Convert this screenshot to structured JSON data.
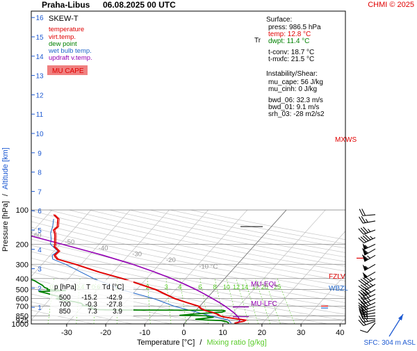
{
  "header": {
    "station": "Praha-Libus",
    "datetime": "06.08.2025 00 UTC",
    "copyright": "CHMI © 2025"
  },
  "colors": {
    "temperature": "#e00000",
    "virtual_temperature": "#e00000",
    "dew_point": "#008000",
    "wet_bulb": "#1e64c8",
    "updraft": "#9400b4",
    "mixing_ratio": "#5ccc2c",
    "grid": "#888888",
    "mu_cape_bg": "#f08080"
  },
  "legend": {
    "title": "SKEW-T",
    "items": [
      {
        "label": "temperature",
        "color": "#e00000"
      },
      {
        "label": "virt.temp.",
        "color": "#e00000"
      },
      {
        "label": "dew point",
        "color": "#008000"
      },
      {
        "label": "wet bulb temp.",
        "color": "#1e64c8"
      },
      {
        "label": "updraft v.temp.",
        "color": "#9400b4"
      }
    ],
    "mu_cape_label": "MU CAPE"
  },
  "surface": {
    "title": "Surface:",
    "press": "press: 986.5 hPa",
    "temp": "temp: 12.8 °C",
    "dwpt": "dwpt: 11.4 °C",
    "tconv": "t-conv: 18.7 °C",
    "tmxfc": "t-mxfc: 21.5 °C"
  },
  "instability": {
    "title": "Instability/Shear:",
    "mu_cape": "mu_cape: 56 J/kg",
    "mu_cinh": "mu_cinh: 0 J/kg",
    "bwd_06": "bwd_06: 32.3 m/s",
    "bwd_01": "bwd_01: 9.1 m/s",
    "srh_03": "srh_03: -28 m2/s2"
  },
  "levels_table": {
    "headers": [
      "p [hPa]",
      "T",
      "Td [°C]"
    ],
    "rows": [
      [
        "500",
        "-15.2",
        "-42.9"
      ],
      [
        "700",
        "-0.3",
        "-27.8"
      ],
      [
        "850",
        "7.3",
        "3.9"
      ]
    ]
  },
  "annotations": {
    "tropopause": "Tr",
    "mu_eql": "MU-EQL",
    "mu_lfc": "MU-LFC",
    "fzlv": "FZLV",
    "wbzl": "WBZL",
    "mxws": "MXWS",
    "sfc": "SFC: 304 m ASL"
  },
  "chart_data": {
    "type": "line",
    "title": "Praha-Libus 06.08.2025 00 UTC",
    "xlabel": "Temperature [°C]",
    "xlabel_sep": "/",
    "xlabel2": "Mixing ratio [g/kg]",
    "ylabel": "Pressure [hPa]",
    "ylabel_sep": "/",
    "ylabel2": "Altitude [km]",
    "xlim": [
      -35,
      45
    ],
    "ylim": [
      1000,
      100
    ],
    "y_scale": "log",
    "x_ticks": [
      -30,
      -20,
      -10,
      0,
      10,
      20,
      30,
      40
    ],
    "x_tick_labels": [
      "-30",
      "-20",
      "-10",
      "0",
      "10",
      "20",
      "30",
      "40"
    ],
    "p_ticks": [
      100,
      200,
      300,
      400,
      500,
      600,
      700,
      850,
      925,
      1000
    ],
    "p_tick_labels": [
      "100",
      "200",
      "300",
      "400",
      "500",
      "600",
      "700",
      "850",
      "925",
      "1000"
    ],
    "alt_ticks": [
      1,
      2,
      3,
      4,
      5,
      6,
      7,
      8,
      9,
      10,
      11,
      12,
      13,
      14,
      15,
      16
    ],
    "alt_tick_labels": [
      "1",
      "2",
      "3",
      "4",
      "5",
      "6",
      "7",
      "8",
      "9",
      "10",
      "11",
      "12",
      "13",
      "14",
      "15",
      "16"
    ],
    "isotherm_labels": [
      {
        "t": -80,
        "label": "-80 °C"
      },
      {
        "t": -70,
        "label": "-70"
      },
      {
        "t": -60,
        "label": "-60"
      },
      {
        "t": -50,
        "label": "-50"
      },
      {
        "t": -40,
        "label": "-40"
      },
      {
        "t": -30,
        "label": "-30"
      },
      {
        "t": -20,
        "label": "-20"
      },
      {
        "t": -10,
        "label": "-10 °C"
      }
    ],
    "mixing_ratio_labels": [
      "0.2",
      "0.4",
      "0.6",
      "1",
      "2",
      "3",
      "4",
      "6",
      "8",
      "10",
      "12",
      "14",
      "17",
      "20",
      "25"
    ],
    "mixing_ratio_values": [
      0.2,
      0.4,
      0.6,
      1,
      2,
      3,
      4,
      6,
      8,
      10,
      12,
      14,
      17,
      20,
      25
    ],
    "grid": true,
    "series": [
      {
        "name": "temperature",
        "p": [
          986.5,
          950,
          925,
          900,
          870,
          850,
          820,
          790,
          760,
          730,
          700,
          650,
          600,
          550,
          500,
          450,
          400,
          350,
          300,
          270,
          250,
          230,
          210,
          200,
          190,
          180,
          170,
          160,
          150,
          140,
          130,
          120,
          110
        ],
        "t": [
          12.8,
          14.6,
          14.8,
          12.0,
          8.6,
          7.3,
          6.2,
          4.4,
          2.2,
          0.6,
          -0.3,
          -4.2,
          -8.2,
          -11.6,
          -15.2,
          -20.3,
          -26.2,
          -33.8,
          -41.5,
          -47.4,
          -49.0,
          -48.8,
          -51.0,
          -51.4,
          -52.0,
          -52.6,
          -53.2,
          -54.0,
          -55.0,
          -54.8,
          -55.6,
          -56.4,
          -58.5
        ]
      },
      {
        "name": "dew point",
        "p": [
          986.5,
          960,
          935,
          925,
          910,
          890,
          875,
          860,
          850,
          840,
          825,
          810,
          790,
          770,
          760,
          755,
          750,
          740,
          730,
          720,
          700,
          690,
          680,
          660,
          640,
          620,
          600,
          580,
          560,
          540,
          520,
          510,
          500,
          490,
          480,
          470,
          460,
          440,
          420,
          400,
          380,
          350,
          320,
          300,
          280,
          260,
          240,
          220,
          200,
          180,
          160,
          140,
          120,
          110,
          105
        ],
        "t": [
          11.4,
          10.6,
          8.8,
          4.6,
          2.0,
          4.4,
          6.0,
          4.4,
          3.9,
          -3.0,
          -0.5,
          2.0,
          7.0,
          7.6,
          7.0,
          -20.0,
          -25.0,
          -27.0,
          -26.8,
          -27.5,
          -27.8,
          -30.2,
          -30.2,
          -31.0,
          -33.0,
          -36.5,
          -38.5,
          -37.5,
          -40.0,
          -42.0,
          -44.5,
          -38.0,
          -42.9,
          -43.0,
          -44.0,
          -44.5,
          -45.0,
          -46.5,
          -48.0,
          -50.0,
          -52.0,
          -55.0,
          -58.0,
          -62.0,
          -64.0,
          -66.0,
          -68.0,
          -70.0,
          -75.0,
          -78.0,
          -82.0,
          -85.0,
          -88.0,
          -90.0,
          -91.0
        ]
      },
      {
        "name": "wet bulb temp.",
        "p": [
          986.5,
          925,
          850,
          700,
          600,
          500,
          400,
          300,
          270,
          250,
          230,
          200,
          180,
          160,
          140,
          120
        ],
        "t": [
          12.0,
          10.5,
          5.0,
          -6.5,
          -13.5,
          -24.0,
          -33.5,
          -44.0,
          -48.5,
          -49.5,
          -49.0,
          -52.5,
          -53.5,
          -55.0,
          -56.0,
          -57.5
        ]
      },
      {
        "name": "updraft v.temp.",
        "p": [
          986.5,
          925,
          850,
          800,
          750,
          700,
          650,
          600,
          550,
          500,
          450,
          400,
          350,
          300,
          250,
          200,
          150,
          120,
          100
        ],
        "t": [
          13.6,
          13.5,
          11.8,
          10.3,
          8.5,
          6.5,
          4.2,
          1.5,
          -1.4,
          -4.8,
          -8.8,
          -13.6,
          -19.5,
          -26.8,
          -36.5,
          -49.5,
          -66.5,
          -81.0,
          -93.0
        ]
      }
    ],
    "wind_barbs": [
      {
        "p": 980,
        "dir": 220,
        "spd_kt": 10
      },
      {
        "p": 950,
        "dir": 250,
        "spd_kt": 20
      },
      {
        "p": 925,
        "dir": 260,
        "spd_kt": 25
      },
      {
        "p": 900,
        "dir": 270,
        "spd_kt": 25
      },
      {
        "p": 850,
        "dir": 265,
        "spd_kt": 25
      },
      {
        "p": 800,
        "dir": 260,
        "spd_kt": 25
      },
      {
        "p": 750,
        "dir": 255,
        "spd_kt": 30
      },
      {
        "p": 700,
        "dir": 250,
        "spd_kt": 30
      },
      {
        "p": 650,
        "dir": 245,
        "spd_kt": 35
      },
      {
        "p": 600,
        "dir": 245,
        "spd_kt": 35
      },
      {
        "p": 550,
        "dir": 245,
        "spd_kt": 40
      },
      {
        "p": 500,
        "dir": 240,
        "spd_kt": 40
      },
      {
        "p": 450,
        "dir": 240,
        "spd_kt": 45
      },
      {
        "p": 400,
        "dir": 240,
        "spd_kt": 45
      },
      {
        "p": 350,
        "dir": 240,
        "spd_kt": 50
      },
      {
        "p": 300,
        "dir": 240,
        "spd_kt": 55
      },
      {
        "p": 250,
        "dir": 240,
        "spd_kt": 65
      },
      {
        "p": 220,
        "dir": 240,
        "spd_kt": 60
      },
      {
        "p": 200,
        "dir": 245,
        "spd_kt": 55
      },
      {
        "p": 175,
        "dir": 245,
        "spd_kt": 45
      },
      {
        "p": 150,
        "dir": 250,
        "spd_kt": 35
      },
      {
        "p": 125,
        "dir": 260,
        "spd_kt": 25
      },
      {
        "p": 110,
        "dir": 265,
        "spd_kt": 20
      }
    ],
    "markers": {
      "tropopause_p": 140,
      "mu_eql_p": 710,
      "mu_lfc_p": 865,
      "fzlv_p": 698,
      "wbzl_p": 725,
      "mxws_p": 265
    }
  }
}
